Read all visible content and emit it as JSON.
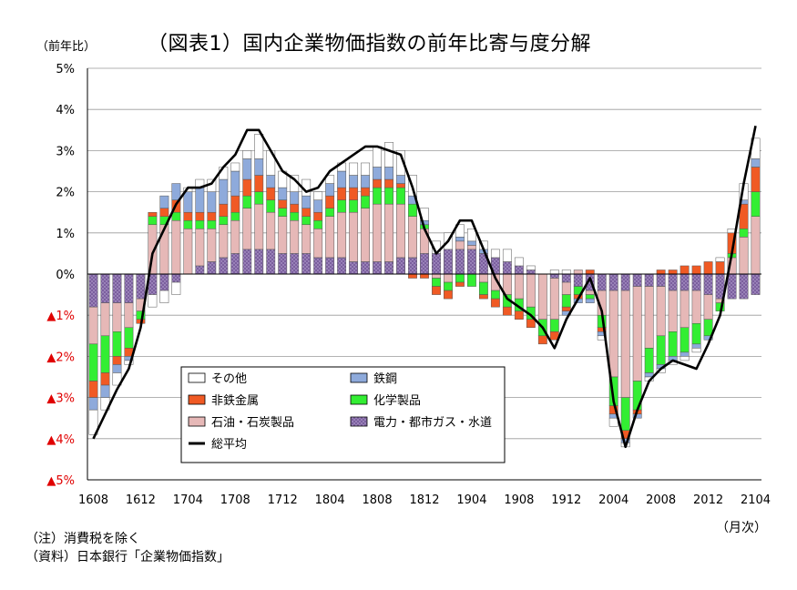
{
  "title": "（図表1）国内企業物価指数の前年比寄与度分解",
  "unit_label": "（前年比）",
  "x_unit_label": "（月次）",
  "notes": {
    "note": "（注）消費税を除く",
    "source": "（資料）日本銀行「企業物価指数」"
  },
  "colors": {
    "other": "#ffffff",
    "steel": "#8eaadb",
    "nonferrous": "#f05a24",
    "chemicals": "#33ee33",
    "petroleum": "#e6b8b7",
    "utilities": "#7b5f9e",
    "total": "#000000",
    "negative_tick": "#e00000"
  },
  "chart_data": {
    "type": "bar",
    "stacked": true,
    "ylim": [
      -5,
      5
    ],
    "yticks": [
      5,
      4,
      3,
      2,
      1,
      0,
      -1,
      -2,
      -3,
      -4,
      -5
    ],
    "ytick_labels": [
      "5%",
      "4%",
      "3%",
      "2%",
      "1%",
      "0%",
      "▲1%",
      "▲2%",
      "▲3%",
      "▲4%",
      "▲5%"
    ],
    "xtick_labels": [
      "1608",
      "1612",
      "1704",
      "1708",
      "1712",
      "1804",
      "1808",
      "1812",
      "1904",
      "1908",
      "1912",
      "2004",
      "2008",
      "2012",
      "2104"
    ],
    "grid": true,
    "legend_position": "lower-left inside",
    "categories": [
      "1608",
      "1609",
      "1610",
      "1611",
      "1612",
      "1701",
      "1702",
      "1703",
      "1704",
      "1705",
      "1706",
      "1707",
      "1708",
      "1709",
      "1710",
      "1711",
      "1712",
      "1801",
      "1802",
      "1803",
      "1804",
      "1805",
      "1806",
      "1807",
      "1808",
      "1809",
      "1810",
      "1811",
      "1812",
      "1901",
      "1902",
      "1903",
      "1904",
      "1905",
      "1906",
      "1907",
      "1908",
      "1909",
      "1910",
      "1911",
      "1912",
      "2001",
      "2002",
      "2003",
      "2004",
      "2005",
      "2006",
      "2007",
      "2008",
      "2009",
      "2010",
      "2011",
      "2012",
      "2101",
      "2102",
      "2103",
      "2104"
    ],
    "series": [
      {
        "name": "電力・都市ガス・水道",
        "key": "utilities",
        "values": [
          -0.8,
          -0.7,
          -0.7,
          -0.7,
          -0.6,
          -0.5,
          -0.4,
          -0.2,
          0.0,
          0.2,
          0.3,
          0.4,
          0.5,
          0.6,
          0.6,
          0.6,
          0.5,
          0.5,
          0.5,
          0.4,
          0.4,
          0.4,
          0.3,
          0.3,
          0.3,
          0.3,
          0.4,
          0.4,
          0.5,
          0.5,
          0.6,
          0.6,
          0.6,
          0.5,
          0.4,
          0.3,
          0.2,
          0.1,
          0.0,
          -0.1,
          -0.2,
          -0.3,
          -0.4,
          -0.4,
          -0.4,
          -0.4,
          -0.3,
          -0.3,
          -0.3,
          -0.4,
          -0.4,
          -0.4,
          -0.5,
          -0.6,
          -0.6,
          -0.6,
          -0.5
        ]
      },
      {
        "name": "石油・石炭製品",
        "key": "petroleum",
        "values": [
          -0.9,
          -0.8,
          -0.7,
          -0.6,
          -0.3,
          1.2,
          1.2,
          1.3,
          1.1,
          0.9,
          0.8,
          0.8,
          0.8,
          1.0,
          1.1,
          0.9,
          0.9,
          0.8,
          0.7,
          0.7,
          1.0,
          1.1,
          1.2,
          1.3,
          1.4,
          1.4,
          1.3,
          1.0,
          0.6,
          -0.1,
          -0.2,
          0.2,
          0.1,
          -0.2,
          -0.4,
          -0.5,
          -0.6,
          -0.8,
          -1.1,
          -1.0,
          -0.3,
          0.1,
          -0.1,
          -0.6,
          -2.1,
          -2.6,
          -2.3,
          -1.5,
          -1.2,
          -1.0,
          -0.9,
          -0.8,
          -0.6,
          -0.1,
          0.4,
          0.9,
          1.4
        ]
      },
      {
        "name": "化学製品",
        "key": "chemicals",
        "values": [
          -0.9,
          -0.9,
          -0.6,
          -0.5,
          -0.2,
          0.2,
          0.2,
          0.2,
          0.2,
          0.2,
          0.2,
          0.2,
          0.2,
          0.3,
          0.3,
          0.3,
          0.2,
          0.2,
          0.2,
          0.2,
          0.2,
          0.3,
          0.3,
          0.3,
          0.4,
          0.4,
          0.4,
          0.3,
          0.1,
          -0.2,
          -0.2,
          -0.2,
          -0.3,
          -0.3,
          -0.2,
          -0.3,
          -0.3,
          -0.3,
          -0.4,
          -0.3,
          -0.3,
          -0.2,
          -0.1,
          -0.3,
          -0.7,
          -0.8,
          -0.7,
          -0.6,
          -0.7,
          -0.6,
          -0.6,
          -0.5,
          -0.4,
          -0.2,
          0.1,
          0.2,
          0.6
        ]
      },
      {
        "name": "非鉄金属",
        "key": "nonferrous",
        "values": [
          -0.4,
          -0.3,
          -0.2,
          -0.2,
          -0.1,
          0.1,
          0.2,
          0.3,
          0.2,
          0.2,
          0.2,
          0.3,
          0.4,
          0.4,
          0.4,
          0.3,
          0.2,
          0.2,
          0.2,
          0.2,
          0.3,
          0.3,
          0.3,
          0.2,
          0.2,
          0.2,
          0.1,
          -0.1,
          -0.1,
          -0.2,
          -0.2,
          -0.1,
          0.0,
          -0.1,
          -0.2,
          -0.2,
          -0.2,
          -0.2,
          -0.2,
          -0.2,
          -0.1,
          -0.1,
          0.1,
          -0.1,
          -0.2,
          -0.2,
          -0.1,
          0.0,
          0.1,
          0.1,
          0.2,
          0.2,
          0.3,
          0.3,
          0.5,
          0.6,
          0.6
        ]
      },
      {
        "name": "鉄鋼",
        "key": "steel",
        "values": [
          -0.3,
          -0.3,
          -0.2,
          -0.1,
          0.0,
          0.0,
          0.3,
          0.4,
          0.5,
          0.6,
          0.5,
          0.6,
          0.6,
          0.5,
          0.4,
          0.3,
          0.3,
          0.3,
          0.3,
          0.3,
          0.3,
          0.4,
          0.3,
          0.3,
          0.3,
          0.3,
          0.2,
          0.2,
          0.1,
          0.0,
          0.0,
          0.1,
          0.1,
          0.1,
          0.0,
          0.0,
          0.0,
          0.0,
          0.0,
          0.0,
          -0.1,
          -0.1,
          -0.1,
          -0.1,
          -0.1,
          -0.1,
          -0.1,
          -0.1,
          -0.1,
          -0.1,
          -0.1,
          -0.1,
          -0.1,
          0.0,
          0.0,
          0.1,
          0.2
        ]
      },
      {
        "name": "その他",
        "key": "other",
        "values": [
          -0.6,
          -0.3,
          -0.3,
          -0.1,
          0.0,
          -0.3,
          -0.3,
          -0.3,
          0.1,
          0.2,
          0.3,
          0.3,
          0.2,
          0.2,
          0.6,
          0.6,
          0.4,
          0.4,
          0.4,
          0.2,
          0.2,
          0.2,
          0.3,
          0.3,
          0.5,
          0.6,
          0.6,
          0.5,
          0.3,
          0.3,
          0.4,
          0.3,
          0.3,
          0.2,
          0.2,
          0.3,
          0.2,
          0.1,
          0.0,
          0.1,
          0.1,
          0.0,
          0.0,
          -0.1,
          -0.2,
          -0.1,
          0.0,
          -0.1,
          -0.1,
          -0.1,
          -0.1,
          -0.1,
          0.0,
          0.1,
          0.1,
          0.4,
          0.5
        ]
      }
    ],
    "total": {
      "name": "総平均",
      "values": [
        -4.0,
        -3.4,
        -2.8,
        -2.3,
        -1.3,
        0.5,
        1.1,
        1.7,
        2.1,
        2.1,
        2.2,
        2.6,
        2.9,
        3.5,
        3.5,
        3.0,
        2.5,
        2.3,
        2.0,
        2.1,
        2.5,
        2.7,
        2.9,
        3.1,
        3.1,
        3.0,
        2.9,
        2.1,
        1.1,
        0.5,
        0.8,
        1.3,
        1.3,
        0.6,
        -0.1,
        -0.6,
        -0.8,
        -1.0,
        -1.3,
        -1.8,
        -1.1,
        -0.6,
        -0.1,
        -0.9,
        -3.1,
        -4.2,
        -3.3,
        -2.6,
        -2.3,
        -2.1,
        -2.2,
        -2.3,
        -1.7,
        -1.0,
        0.5,
        2.2,
        3.6
      ]
    }
  },
  "legend": {
    "other": "その他",
    "steel": "鉄鋼",
    "nonferrous": "非鉄金属",
    "chemicals": "化学製品",
    "petroleum": "石油・石炭製品",
    "utilities": "電力・都市ガス・水道",
    "total": "総平均"
  }
}
